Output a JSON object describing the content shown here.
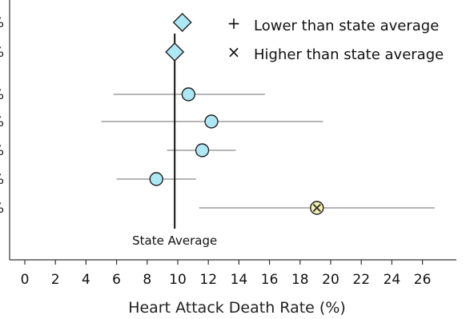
{
  "chart_data": {
    "type": "scatter",
    "xlabel": "Heart Attack Death Rate (%)",
    "xlim": [
      -1.5,
      28.5
    ],
    "xticks": [
      0,
      2,
      4,
      6,
      8,
      10,
      12,
      14,
      16,
      18,
      20,
      22,
      24,
      26
    ],
    "reference_line": {
      "label": "State Average",
      "x": 9.8
    },
    "legend": {
      "placement": "top-right",
      "items": [
        {
          "symbol": "+",
          "label": "Lower than state average"
        },
        {
          "symbol": "×",
          "label": "Higher than state average"
        }
      ]
    },
    "rows": [
      {
        "label": "%",
        "marker": "diamond",
        "value": 10.3,
        "ci_low": null,
        "ci_high": null,
        "flag": ""
      },
      {
        "label": "%",
        "marker": "diamond",
        "value": 9.8,
        "ci_low": null,
        "ci_high": null,
        "flag": ""
      },
      {
        "label": "%",
        "marker": "circle",
        "value": 10.7,
        "ci_low": 5.8,
        "ci_high": 15.7,
        "flag": ""
      },
      {
        "label": "%",
        "marker": "circle",
        "value": 12.2,
        "ci_low": 5.0,
        "ci_high": 19.5,
        "flag": ""
      },
      {
        "label": "%",
        "marker": "circle",
        "value": 11.6,
        "ci_low": 9.3,
        "ci_high": 13.8,
        "flag": ""
      },
      {
        "label": "%",
        "marker": "circle",
        "value": 8.6,
        "ci_low": 6.0,
        "ci_high": 11.2,
        "flag": ""
      },
      {
        "label": "%",
        "marker": "circle",
        "value": 19.1,
        "ci_low": 11.4,
        "ci_high": 26.8,
        "flag": "higher"
      }
    ],
    "colors": {
      "marker_fill": "#aee8f5",
      "flagged_fill": "#f3f0b4",
      "marker_stroke": "#222222",
      "whisker": "#8a8a8a",
      "axis": "#333333",
      "reference": "#111111"
    }
  }
}
